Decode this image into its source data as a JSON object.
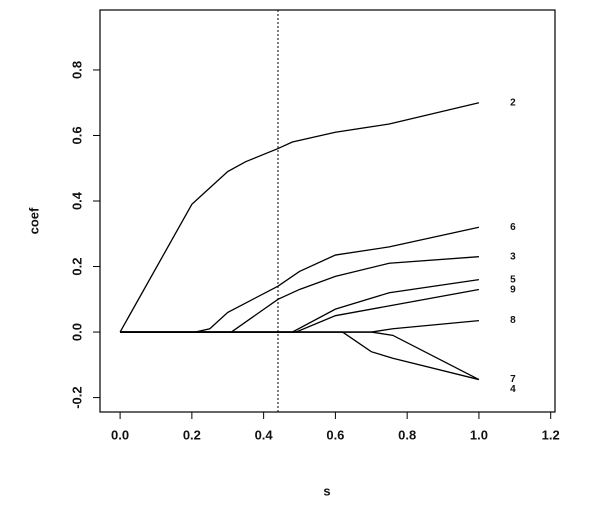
{
  "chart_data": {
    "type": "line",
    "xlabel": "s",
    "ylabel": "coef",
    "xlim": [
      -0.056,
      1.212
    ],
    "ylim": [
      -0.244,
      0.983
    ],
    "xticks": [
      {
        "value": 0,
        "label": "0.0"
      },
      0.2,
      0.4,
      0.6,
      0.8,
      {
        "value": 1,
        "label": "1.0"
      },
      1.2
    ],
    "yticks": [
      -0.2,
      {
        "value": 0,
        "label": "0.0"
      },
      0.2,
      0.4,
      0.6,
      0.8
    ],
    "vline": 0.44,
    "series": [
      {
        "name": "2",
        "color": "#000000",
        "x": [
          0,
          0.2,
          0.25,
          0.3,
          0.35,
          0.44,
          0.48,
          0.6,
          0.75,
          1.0
        ],
        "values": [
          0,
          0.39,
          0.44,
          0.49,
          0.52,
          0.56,
          0.58,
          0.61,
          0.635,
          0.7
        ]
      },
      {
        "name": "6",
        "color": "#000000",
        "x": [
          0,
          0.21,
          0.25,
          0.3,
          0.44,
          0.5,
          0.6,
          0.75,
          1.0
        ],
        "values": [
          0,
          0,
          0.01,
          0.06,
          0.14,
          0.185,
          0.235,
          0.26,
          0.32
        ]
      },
      {
        "name": "3",
        "color": "#000000",
        "x": [
          0,
          0.31,
          0.44,
          0.5,
          0.6,
          0.75,
          1.0
        ],
        "values": [
          0,
          0,
          0.1,
          0.13,
          0.17,
          0.21,
          0.23
        ]
      },
      {
        "name": "5",
        "color": "#000000",
        "x": [
          0,
          0.48,
          0.6,
          0.75,
          1.0
        ],
        "values": [
          0,
          0,
          0.07,
          0.12,
          0.16
        ]
      },
      {
        "name": "9",
        "color": "#000000",
        "x": [
          0,
          0.49,
          0.6,
          0.75,
          1.0
        ],
        "values": [
          0,
          0,
          0.05,
          0.08,
          0.13
        ]
      },
      {
        "name": "8",
        "color": "#000000",
        "x": [
          0,
          0.7,
          0.76,
          1.0
        ],
        "values": [
          0,
          0,
          0.01,
          0.035
        ]
      },
      {
        "name": "7",
        "color": "#000000",
        "x": [
          0,
          0.62,
          0.7,
          0.76,
          1.0
        ],
        "values": [
          0,
          0,
          -0.06,
          -0.08,
          -0.145
        ]
      },
      {
        "name": "4",
        "color": "#000000",
        "x": [
          0,
          0.7,
          0.76,
          1.0
        ],
        "values": [
          0,
          0,
          -0.01,
          -0.145
        ]
      }
    ]
  }
}
